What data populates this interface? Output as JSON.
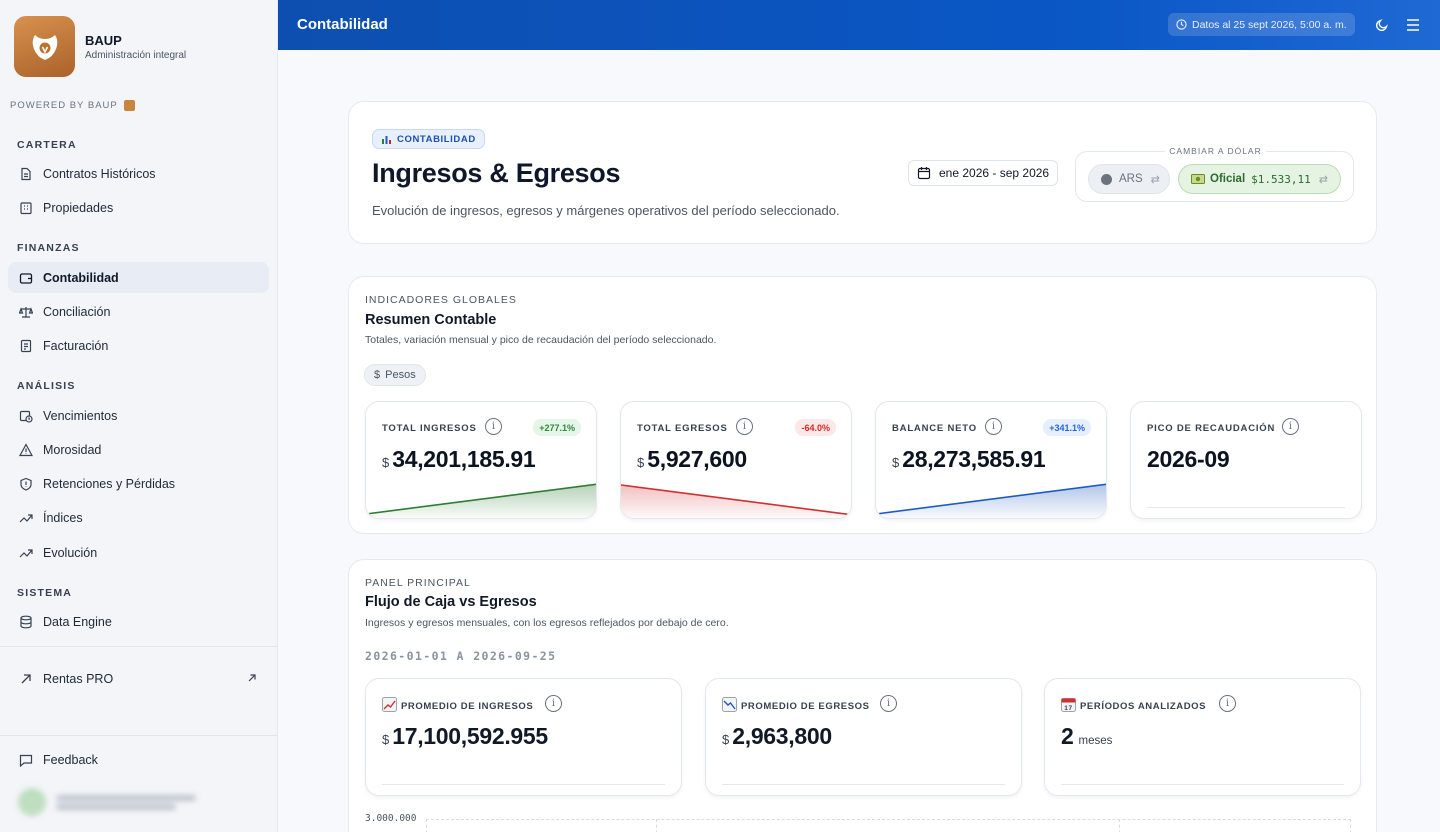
{
  "brand": {
    "name": "BAUP",
    "subtitle": "Administración integral",
    "powered": "POWERED BY BAUP"
  },
  "sidebar": {
    "sections": {
      "cartera": "CARTERA",
      "finanzas": "FINANZAS",
      "analisis": "ANÁLISIS",
      "sistema": "SISTEMA"
    },
    "items": {
      "contratos": "Contratos Históricos",
      "propiedades": "Propiedades",
      "contabilidad": "Contabilidad",
      "conciliacion": "Conciliación",
      "facturacion": "Facturación",
      "vencimientos": "Vencimientos",
      "morosidad": "Morosidad",
      "retenciones": "Retenciones y Pérdidas",
      "indices": "Índices",
      "evolucion": "Evolución",
      "data_engine": "Data Engine",
      "rentas_pro": "Rentas PRO",
      "feedback": "Feedback"
    },
    "active": "contabilidad"
  },
  "topbar": {
    "title": "Contabilidad",
    "datos": "Datos al 25 sept 2026, 5:00 a. m."
  },
  "hero": {
    "badge": "CONTABILIDAD",
    "title": "Ingresos & Egresos",
    "subtitle": "Evolución de ingresos, egresos y márgenes operativos del período seleccionado.",
    "date_range": "ene 2026 - sep 2026",
    "dollar_label": "CAMBIAR A DÓLAR",
    "ars": "ARS",
    "oficial": "Oficial",
    "oficial_value": "$1.533,11"
  },
  "resumen": {
    "eyebrow": "INDICADORES GLOBALES",
    "title": "Resumen Contable",
    "subtitle": "Totales, variación mensual y pico de recaudación del período seleccionado.",
    "chip": "Pesos",
    "currency_symbol": "$",
    "kpis": [
      {
        "label": "TOTAL INGRESOS",
        "value": "34,201,185.91",
        "badge": "+277.1%",
        "color": "#2e7d32"
      },
      {
        "label": "TOTAL EGRESOS",
        "value": "5,927,600",
        "badge": "-64.0%",
        "color": "#d32f2f"
      },
      {
        "label": "BALANCE NETO",
        "value": "28,273,585.91",
        "badge": "+341.1%",
        "color": "#1e5bbf"
      },
      {
        "label": "PICO DE RECAUDACIÓN",
        "value": "2026-09"
      }
    ]
  },
  "panel": {
    "eyebrow": "PANEL PRINCIPAL",
    "title": "Flujo de Caja vs Egresos",
    "subtitle": "Ingresos y egresos mensuales, con los egresos reflejados por debajo de cero.",
    "range": "2026-01-01 A 2026-09-25",
    "stats": [
      {
        "label": "PROMEDIO DE INGRESOS",
        "value": "17,100,592.955",
        "currency": "$"
      },
      {
        "label": "PROMEDIO DE EGRESOS",
        "value": "2,963,800",
        "currency": "$"
      },
      {
        "label": "PERÍODOS ANALIZADOS",
        "value": "2",
        "unit": "meses"
      }
    ],
    "axis_tick": "3.000.000"
  }
}
